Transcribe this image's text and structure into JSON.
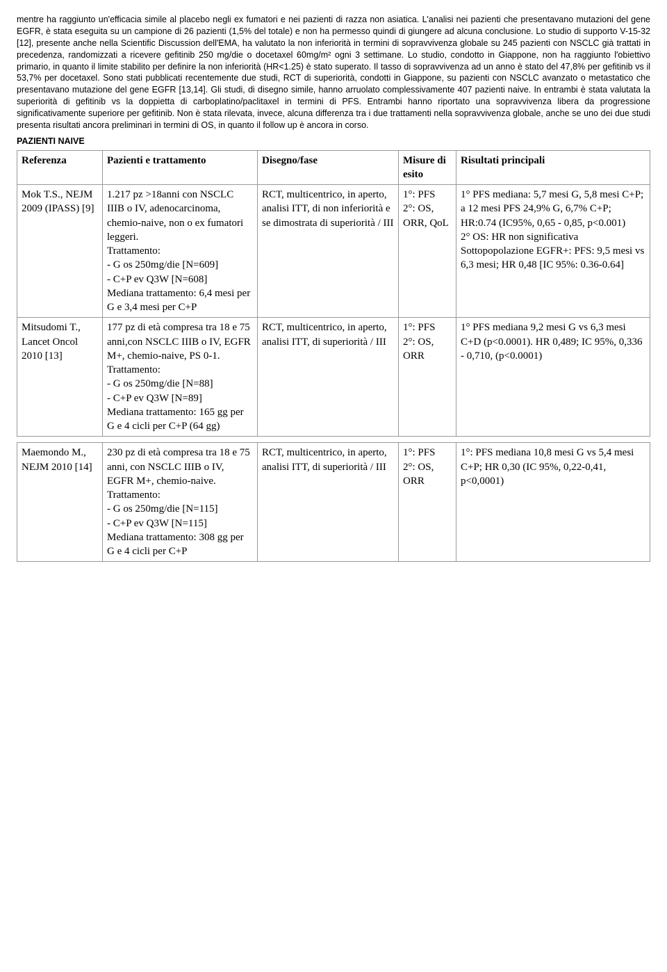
{
  "paragraph1": "mentre ha raggiunto un'efficacia simile al placebo negli ex fumatori e nei pazienti di razza non asiatica. L'analisi nei pazienti che presentavano mutazioni del gene EGFR, è stata eseguita su un campione di 26 pazienti (1,5% del totale) e non ha permesso quindi di giungere ad alcuna conclusione. Lo studio di supporto V-15-32 [12], presente anche nella Scientific Discussion dell'EMA, ha valutato la non inferiorità in termini di sopravvivenza globale su 245 pazienti con NSCLC già trattati in precedenza, randomizzati a ricevere gefitinib 250 mg/die o docetaxel 60mg/m² ogni 3 settimane. Lo studio, condotto in Giappone, non ha raggiunto l'obiettivo primario, in quanto il limite stabilito per definire la non inferiorità (HR<1.25) è stato superato. Il tasso di sopravvivenza ad un anno è stato del 47,8% per gefitinib vs il 53,7% per docetaxel. Sono stati pubblicati recentemente due studi, RCT di superiorità, condotti in Giappone, su pazienti con NSCLC avanzato o metastatico che presentavano mutazione del gene EGFR [13,14]. Gli studi, di disegno simile, hanno arruolato complessivamente 407 pazienti naive. In entrambi è stata valutata la superiorità di gefitinib vs la doppietta di carboplatino/paclitaxel in termini di PFS. Entrambi hanno riportato una sopravvivenza libera da progressione significativamente superiore per gefitinib. Non è stata rilevata, invece, alcuna differenza tra i due trattamenti nella sopravvivenza globale, anche se uno dei due studi presenta risultati ancora preliminari in termini di OS, in quanto il follow up è ancora in corso.",
  "section_title": "PAZIENTI NAIVE",
  "headers": {
    "ref": "Referenza",
    "paz": "Pazienti e trattamento",
    "dis": "Disegno/fase",
    "mis": "Misure di esito",
    "ris": "Risultati principali"
  },
  "rows": [
    {
      "ref": " Mok T.S., NEJM 2009 (IPASS) [9]",
      "paz": " 1.217 pz >18anni con NSCLC IIIB o IV, adenocarcinoma, chemio-naive, non o ex fumatori leggeri.\nTrattamento:\n- G os 250mg/die [N=609]\n-  C+P ev Q3W [N=608]\nMediana trattamento: 6,4 mesi per G e 3,4 mesi per C+P",
      "dis": " RCT, multicentrico, in aperto, analisi ITT, di non inferiorità e se dimostrata di superiorità / III",
      "mis": "1°: PFS\n2°: OS, ORR, QoL",
      "ris": " 1° PFS mediana: 5,7 mesi G, 5,8 mesi C+P; a 12 mesi PFS  24,9% G, 6,7% C+P; HR:0.74 (IC95%, 0,65 - 0,85, p<0.001)\n2° OS: HR non significativa\nSottopopolazione EGFR+: PFS: 9,5 mesi vs 6,3 mesi; HR 0,48 [IC 95%: 0.36-0.64]"
    },
    {
      "ref": "Mitsudomi T., Lancet Oncol 2010 [13]",
      "paz": "177 pz di età compresa tra 18 e 75 anni,con NSCLC IIIB o IV, EGFR M+, chemio-naive, PS 0-1.\nTrattamento:\n- G os 250mg/die [N=88]\n- C+P ev Q3W [N=89]\nMediana trattamento: 165 gg per G e 4 cicli per C+P (64 gg)",
      "dis": "RCT, multicentrico, in aperto, analisi ITT, di superiorità / III",
      "mis": "1°: PFS\n2°: OS, ORR",
      "ris": "1° PFS mediana 9,2 mesi G vs 6,3 mesi C+D (p<0.0001). HR 0,489; IC 95%, 0,336 - 0,710, (p<0.0001)"
    },
    {
      "ref": " Maemondo M., NEJM 2010 [14]",
      "paz": " 230 pz di età compresa tra 18 e 75 anni, con NSCLC IIIB o IV, EGFR M+, chemio-naive.\nTrattamento:\n- G os 250mg/die [N=115]\n- C+P ev Q3W [N=115]\nMediana trattamento: 308 gg per G e 4 cicli per C+P",
      "dis": " RCT, multicentrico, in aperto, analisi ITT, di superiorità  / III",
      "mis": " 1°: PFS\n2°: OS, ORR",
      "ris": " 1°: PFS mediana 10,8 mesi G vs 5,4 mesi C+P; HR 0,30 (IC 95%, 0,22-0,41, p<0,0001)"
    }
  ]
}
